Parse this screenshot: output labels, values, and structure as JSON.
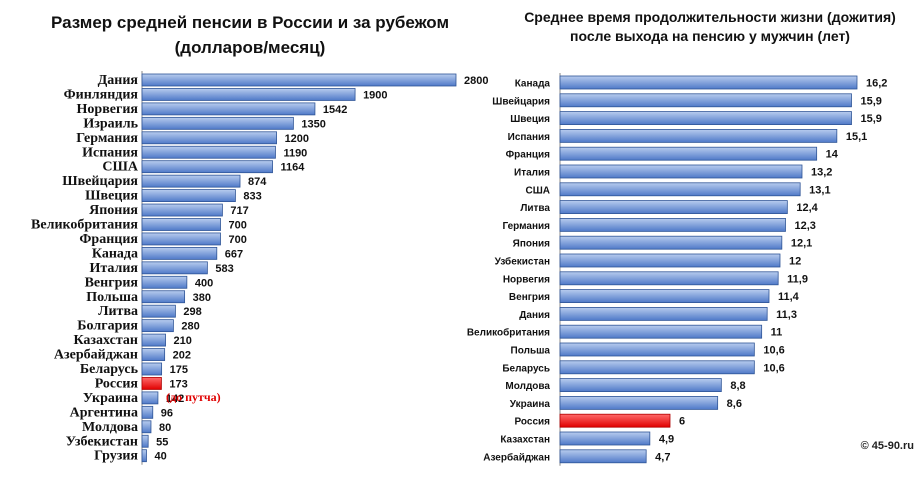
{
  "colors": {
    "bar_top": "#b8ccee",
    "bar_bottom": "#4f79c8",
    "bar_stroke": "#2f5597",
    "highlight_top": "#ff6a6a",
    "highlight_bottom": "#e00000",
    "highlight_stroke": "#b00000",
    "note_text": "#e00000"
  },
  "annotations": {
    "russia_note": "(до путча)",
    "copyright": "© 45-90.ru"
  },
  "chart_data": [
    {
      "type": "bar",
      "orientation": "horizontal",
      "title": "Размер средней пенсии в России и за рубежом (долларов/месяц)",
      "title_lines": [
        "Размер средней пенсии в России и за рубежом",
        "(долларов/месяц)"
      ],
      "categories": [
        "Дания",
        "Финляндия",
        "Норвегия",
        "Израиль",
        "Германия",
        "Испания",
        "США",
        "Швейцария",
        "Швеция",
        "Япония",
        "Великобритания",
        "Франция",
        "Канада",
        "Италия",
        "Венгрия",
        "Польша",
        "Литва",
        "Болгария",
        "Казахстан",
        "Азербайджан",
        "Беларусь",
        "Россия",
        "Украина",
        "Аргентина",
        "Молдова",
        "Узбекистан",
        "Грузия"
      ],
      "values": [
        2800,
        1900,
        1542,
        1350,
        1200,
        1190,
        1164,
        874,
        833,
        717,
        700,
        700,
        667,
        583,
        400,
        380,
        298,
        280,
        210,
        202,
        175,
        173,
        142,
        96,
        80,
        55,
        40
      ],
      "value_labels": [
        "2800",
        "1900",
        "1542",
        "1350",
        "1200",
        "1190",
        "1164",
        "874",
        "833",
        "717",
        "700",
        "700",
        "667",
        "583",
        "400",
        "380",
        "298",
        "280",
        "210",
        "202",
        "175",
        "173",
        "142",
        "96",
        "80",
        "55",
        "40"
      ],
      "highlight": "Россия",
      "xlim": [
        0,
        2800
      ]
    },
    {
      "type": "bar",
      "orientation": "horizontal",
      "title": "Среднее время продолжительности жизни (дожития) после выхода на пенсию у мужчин (лет)",
      "title_lines": [
        "Среднее время продолжительности жизни (дожития)",
        "после выхода на пенсию у мужчин (лет)"
      ],
      "categories": [
        "Канада",
        "Швейцария",
        "Швеция",
        "Испания",
        "Франция",
        "Италия",
        "США",
        "Литва",
        "Германия",
        "Япония",
        "Узбекистан",
        "Норвегия",
        "Венгрия",
        "Дания",
        "Великобритания",
        "Польша",
        "Беларусь",
        "Молдова",
        "Украина",
        "Россия",
        "Казахстан",
        "Азербайджан"
      ],
      "values": [
        16.2,
        15.9,
        15.9,
        15.1,
        14,
        13.2,
        13.1,
        12.4,
        12.3,
        12.1,
        12,
        11.9,
        11.4,
        11.3,
        11,
        10.6,
        10.6,
        8.8,
        8.6,
        6,
        4.9,
        4.7
      ],
      "value_labels": [
        "16,2",
        "15,9",
        "15,9",
        "15,1",
        "14",
        "13,2",
        "13,1",
        "12,4",
        "12,3",
        "12,1",
        "12",
        "11,9",
        "11,4",
        "11,3",
        "11",
        "10,6",
        "10,6",
        "8,8",
        "8,6",
        "6",
        "4,9",
        "4,7"
      ],
      "highlight": "Россия",
      "xlim": [
        0,
        16.2
      ]
    }
  ]
}
